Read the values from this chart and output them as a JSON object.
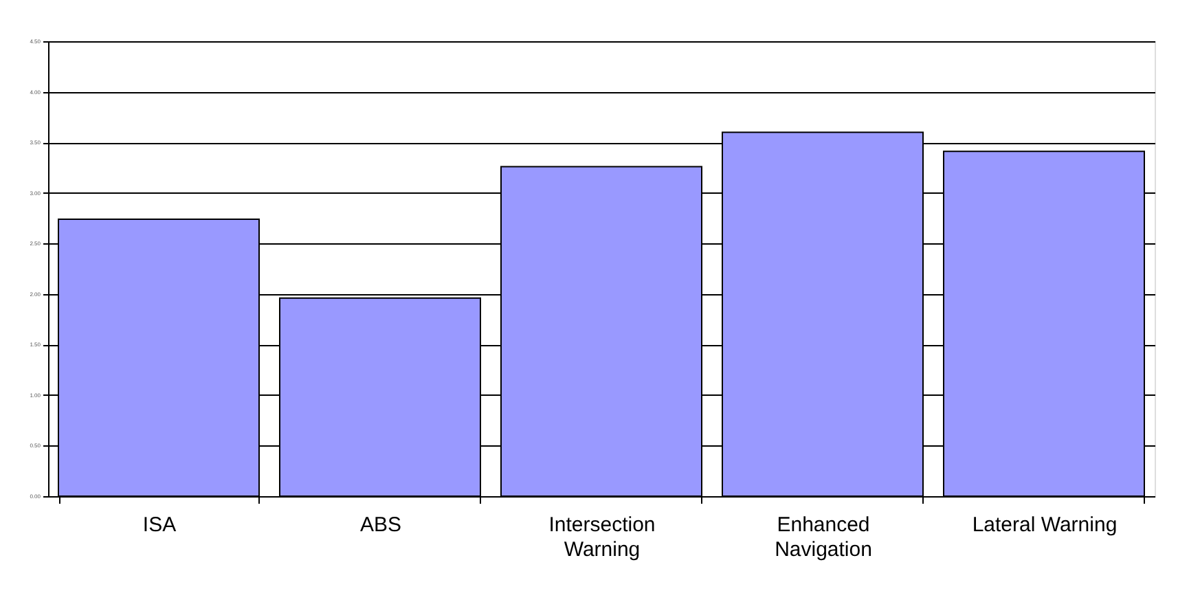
{
  "chart_data": {
    "type": "bar",
    "categories": [
      "ISA",
      "ABS",
      "Intersection\nWarning",
      "Enhanced\nNavigation",
      "Lateral Warning"
    ],
    "values": [
      2.74,
      1.96,
      3.26,
      3.6,
      3.41
    ],
    "color": "#9999ff",
    "ylim": [
      0,
      4.5
    ],
    "yticks": [
      {
        "value": 0,
        "label": "0.00"
      },
      {
        "value": 0.5,
        "label": "0.50"
      },
      {
        "value": 1,
        "label": "1.00"
      },
      {
        "value": 1.5,
        "label": "1.50"
      },
      {
        "value": 2,
        "label": "2.00"
      },
      {
        "value": 2.5,
        "label": "2.50"
      },
      {
        "value": 3,
        "label": "3.00"
      },
      {
        "value": 3.5,
        "label": "3.50"
      },
      {
        "value": 4,
        "label": "4.00"
      },
      {
        "value": 4.5,
        "label": "4.50"
      }
    ],
    "grid": "y"
  }
}
